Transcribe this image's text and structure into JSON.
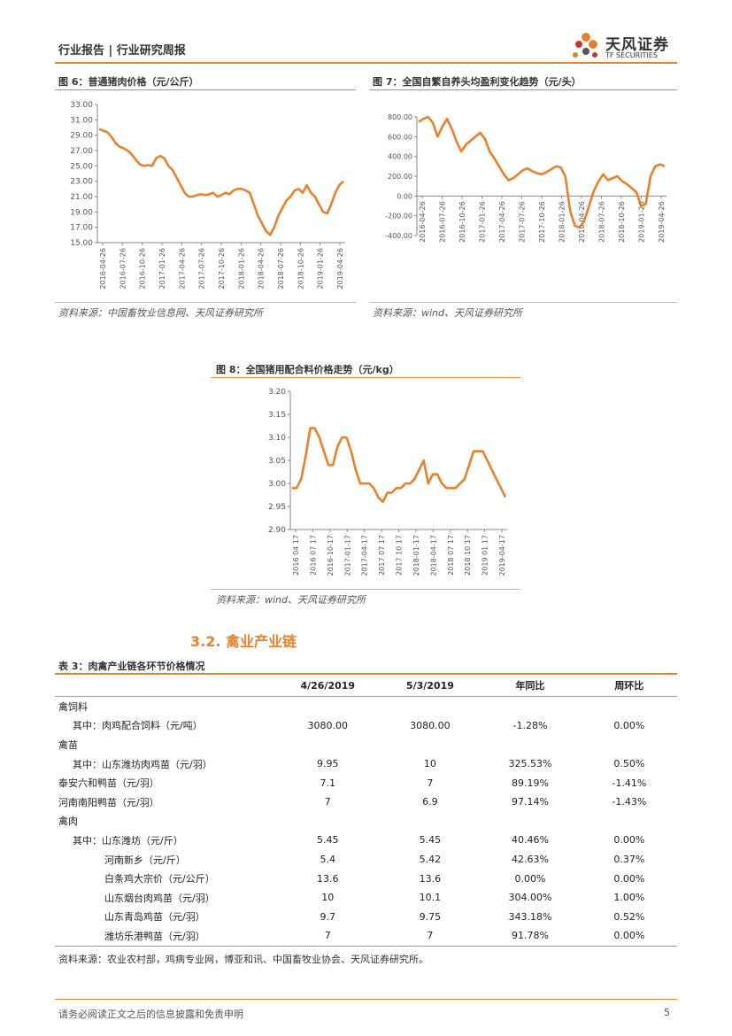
{
  "header": {
    "title": "行业报告 | 行业研究周报",
    "logo_cn": "天风证券",
    "logo_en": "TF SECURITIES"
  },
  "figures": [
    {
      "title": "图 6：普通猪肉价格（元/公斤）",
      "source": "资料来源：中国畜牧业信息网、天风证券研究所"
    },
    {
      "title": "图 7：全国自繁自养头均盈利变化趋势（元/头）",
      "source": "资料来源：wind、天风证券研究所"
    },
    {
      "title": "图 8：全国猪用配合料价格走势（元/kg）",
      "source": "资料来源：wind、天风证券研究所"
    }
  ],
  "chart_data": [
    {
      "type": "line",
      "title": "图 6：普通猪肉价格（元/公斤）",
      "ylim": [
        15,
        33
      ],
      "yticks": [
        "33.00",
        "31.00",
        "29.00",
        "27.00",
        "25.00",
        "23.00",
        "21.00",
        "19.00",
        "17.00",
        "15.00"
      ],
      "xticks": [
        "2016-04-26",
        "2016-07-26",
        "2016-10-26",
        "2017-01-26",
        "2017-04-26",
        "2017-07-26",
        "2017-10-26",
        "2018-01-26",
        "2018-04-26",
        "2018-07-26",
        "2018-10-26",
        "2019-01-26",
        "2019-04-26"
      ],
      "series": [
        {
          "color": "#e8812d",
          "values": [
            29.8,
            29.6,
            29.4,
            28.8,
            28.0,
            27.5,
            27.3,
            27.0,
            26.5,
            25.8,
            25.2,
            25.0,
            25.1,
            25.0,
            26.0,
            26.3,
            26.0,
            25.0,
            24.5,
            23.5,
            22.5,
            21.5,
            21.0,
            21.0,
            21.2,
            21.3,
            21.2,
            21.3,
            21.5,
            21.0,
            21.2,
            21.5,
            21.3,
            21.8,
            22.0,
            22.0,
            21.8,
            21.5,
            20.0,
            18.5,
            17.5,
            16.5,
            16.0,
            17.0,
            18.5,
            19.5,
            20.5,
            21.0,
            21.8,
            22.0,
            21.5,
            22.5,
            21.5,
            21.0,
            20.0,
            19.0,
            18.8,
            20.0,
            21.5,
            22.5,
            23.0
          ]
        }
      ]
    },
    {
      "type": "line",
      "title": "图 7：全国自繁自养头均盈利变化趋势（元/头）",
      "ylim": [
        -400,
        800
      ],
      "yticks": [
        "800.00",
        "600.00",
        "400.00",
        "200.00",
        "0.00",
        "-200.00",
        "-400.00"
      ],
      "xticks": [
        "2016-04-26",
        "2016-07-26",
        "2016-10-26",
        "2017-01-26",
        "2017-04-26",
        "2017-07-26",
        "2017-10-26",
        "2018-01-26",
        "2018-04-26",
        "2018-07-26",
        "2018-10-26",
        "2019-01-26",
        "2019-04-26"
      ],
      "series": [
        {
          "color": "#e8812d",
          "values": [
            750,
            780,
            800,
            740,
            600,
            700,
            780,
            680,
            550,
            450,
            520,
            560,
            600,
            640,
            580,
            450,
            380,
            300,
            220,
            160,
            180,
            220,
            260,
            280,
            250,
            230,
            220,
            240,
            270,
            300,
            290,
            200,
            -150,
            -300,
            -320,
            -250,
            -100,
            50,
            150,
            220,
            160,
            180,
            200,
            150,
            120,
            80,
            40,
            -100,
            -80,
            200,
            300,
            320,
            300
          ]
        }
      ]
    },
    {
      "type": "line",
      "title": "图 8：全国猪用配合料价格走势（元/kg）",
      "ylim": [
        2.9,
        3.2
      ],
      "yticks": [
        "3.20",
        "3.15",
        "3.10",
        "3.05",
        "3.00",
        "2.95",
        "2.90"
      ],
      "xticks": [
        "2016 04 17",
        "2016 07 17",
        "2016-10-17",
        "2017-01-17",
        "2017-04-17",
        "2017 07 17",
        "2017 10 17",
        "2018-01-17",
        "2018-04-17",
        "2018 07 17",
        "2018 10 17",
        "2019 01 17",
        "2019-04-17"
      ],
      "series": [
        {
          "color": "#e8812d",
          "values": [
            2.99,
            2.99,
            3.01,
            3.06,
            3.12,
            3.12,
            3.1,
            3.07,
            3.04,
            3.04,
            3.08,
            3.1,
            3.1,
            3.07,
            3.03,
            3.0,
            3.0,
            3.0,
            2.99,
            2.97,
            2.96,
            2.98,
            2.98,
            2.99,
            2.99,
            3.0,
            3.0,
            3.01,
            3.03,
            3.05,
            3.0,
            3.02,
            3.02,
            3.0,
            2.99,
            2.99,
            2.99,
            3.0,
            3.01,
            3.04,
            3.07,
            3.07,
            3.07,
            3.05,
            3.03,
            3.01,
            2.99,
            2.97
          ]
        }
      ]
    }
  ],
  "section": {
    "title": "3.2. 禽业产业链"
  },
  "table": {
    "title": "表 3：肉禽产业链各环节价格情况",
    "headers": [
      "",
      "4/26/2019",
      "5/3/2019",
      "年同比",
      "周环比"
    ],
    "rows": [
      [
        "禽饲料",
        "",
        "",
        "",
        ""
      ],
      [
        "其中：肉鸡配合饲料（元/吨）",
        "3080.00",
        "3080.00",
        "-1.28%",
        "0.00%"
      ],
      [
        "禽苗",
        "",
        "",
        "",
        ""
      ],
      [
        "其中：山东潍坊肉鸡苗（元/羽）",
        "9.95",
        "10",
        "325.53%",
        "0.50%"
      ],
      [
        "泰安六和鸭苗（元/羽）",
        "7.1",
        "7",
        "89.19%",
        "-1.41%"
      ],
      [
        "河南南阳鸭苗（元/羽）",
        "7",
        "6.9",
        "97.14%",
        "-1.43%"
      ],
      [
        "禽肉",
        "",
        "",
        "",
        ""
      ],
      [
        "其中：山东潍坊（元/斤）",
        "5.45",
        "5.45",
        "40.46%",
        "0.00%"
      ],
      [
        "河南新乡（元/斤）",
        "5.4",
        "5.42",
        "42.63%",
        "0.37%"
      ],
      [
        "白条鸡大宗价（元/公斤）",
        "13.6",
        "13.6",
        "0.00%",
        "0.00%"
      ],
      [
        "山东烟台肉鸡苗（元/羽）",
        "10",
        "10.1",
        "304.00%",
        "1.00%"
      ],
      [
        "山东青岛鸡苗（元/羽）",
        "9.7",
        "9.75",
        "343.18%",
        "0.52%"
      ],
      [
        "潍坊乐港鸭苗（元/羽）",
        "7",
        "7",
        "91.78%",
        "0.00%"
      ]
    ],
    "source": "资料来源：农业农村部，鸡病专业网，博亚和讯、中国畜牧业协会、天风证券研究所。"
  },
  "footer": {
    "disclaimer": "请务必阅读正文之后的信息披露和免责申明",
    "page": "5"
  }
}
